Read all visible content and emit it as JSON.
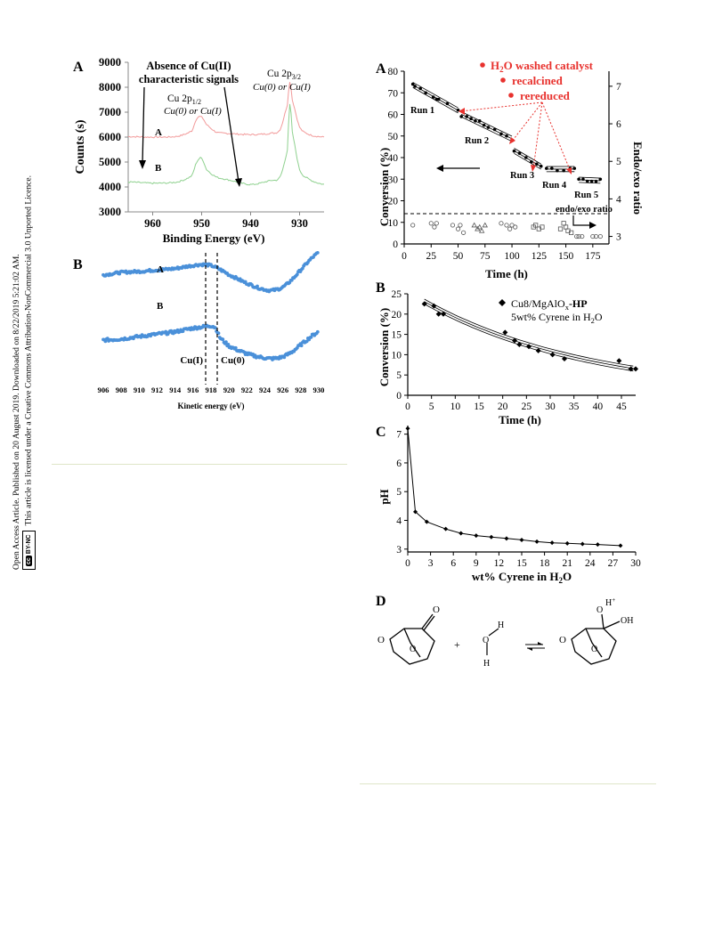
{
  "side_note": {
    "line1": "Open Access Article. Published on 20 August 2019. Downloaded on 8/22/2019 5:21:02 AM.",
    "line2": "This article is licensed under a Creative Commons Attribution-NonCommercial 3.0 Unported Licence.",
    "badge_cc": "cc",
    "badge_text": "BY-NC"
  },
  "left": {
    "A": {
      "letter": "A",
      "ylabel": "Counts (s)",
      "xlabel": "Binding Energy (eV)",
      "yticks": [
        "9000",
        "8000",
        "7000",
        "6000",
        "5000",
        "4000",
        "3000"
      ],
      "xticks": [
        "960",
        "950",
        "940",
        "930"
      ],
      "annot_absence_1": "Absence of Cu(II)",
      "annot_absence_2": "characteristic signals",
      "annot_2p12_a": "Cu 2p",
      "annot_2p12_sub": "1/2",
      "annot_2p12_b": "Cu(0) or Cu(I)",
      "annot_2p32_a": "Cu 2p",
      "annot_2p32_sub": "3/2",
      "annot_2p32_b": "Cu(0) or Cu(I)",
      "label_A": "A",
      "label_B": "B",
      "color_A": "#f29a9a",
      "color_B": "#8fd18f"
    },
    "B": {
      "letter": "B",
      "xlabel": "Kinetic energy (eV)",
      "xticks": [
        "906",
        "908",
        "910",
        "912",
        "914",
        "916",
        "918",
        "920",
        "922",
        "924",
        "926",
        "928",
        "930"
      ],
      "label_A": "A",
      "label_B": "B",
      "label_cu1": "Cu(I)",
      "label_cu0": "Cu(0)",
      "color": "#4a90d9"
    }
  },
  "right": {
    "A": {
      "letter": "A",
      "ylabel": "Conversion (%)",
      "y2label": "Endo/exo ratio",
      "xlabel": "Time (h)",
      "yticks": [
        "80",
        "70",
        "60",
        "50",
        "40",
        "30",
        "20",
        "10",
        "0"
      ],
      "y2ticks": [
        "7",
        "6",
        "5",
        "4",
        "3"
      ],
      "xticks": [
        "0",
        "25",
        "50",
        "75",
        "100",
        "125",
        "150",
        "175"
      ],
      "legend_1a": "H",
      "legend_1sub": "2",
      "legend_1b": "O washed catalyst",
      "legend_2": "recalcined",
      "legend_3": "rereduced",
      "run1": "Run 1",
      "run2": "Run 2",
      "run3": "Run 3",
      "run4": "Run 4",
      "run5": "Run 5",
      "endo_exo_label": "endo/exo ratio",
      "red": "#e8322e"
    },
    "B": {
      "letter": "B",
      "ylabel": "Conversion (%)",
      "xlabel": "Time (h)",
      "yticks": [
        "25",
        "20",
        "15",
        "10",
        "5",
        "0"
      ],
      "xticks": [
        "0",
        "5",
        "10",
        "15",
        "20",
        "25",
        "30",
        "35",
        "40",
        "45"
      ],
      "legend_1a": "Cu8/MgAlO",
      "legend_1sub": "x",
      "legend_1b": "-HP",
      "legend_2a": "5wt% Cyrene in H",
      "legend_2sub": "2",
      "legend_2b": "O"
    },
    "C": {
      "letter": "C",
      "ylabel": "pH",
      "xlabel_a": "wt% Cyrene in H",
      "xlabel_sub": "2",
      "xlabel_b": "O",
      "yticks": [
        "7",
        "6",
        "5",
        "4",
        "3"
      ],
      "xticks": [
        "0",
        "3",
        "6",
        "9",
        "12",
        "15",
        "18",
        "21",
        "24",
        "27",
        "30"
      ]
    },
    "D": {
      "letter": "D",
      "atom_O_ring": "O",
      "atom_O_keto": "O",
      "atom_O_bridge": "O",
      "plus": "+",
      "water_O": "O",
      "water_H1": "H",
      "water_H2": "H",
      "prod_O_ring": "O",
      "prod_O_bridge": "O",
      "prod_Ominus": "O",
      "prod_H": "H",
      "prod_plus": "+",
      "prod_OH": "OH"
    }
  },
  "chart_data": [
    {
      "type": "line",
      "panel": "left A (XPS)",
      "xlabel": "Binding Energy (eV)",
      "ylabel": "Counts (s)",
      "xlim": [
        965,
        925
      ],
      "ylim": [
        3000,
        9000
      ],
      "series": [
        {
          "name": "A",
          "x": [
            965,
            960,
            955,
            952,
            951,
            950,
            949,
            947,
            945,
            940,
            936,
            934,
            932.5,
            932,
            931.5,
            930,
            928,
            925
          ],
          "values": [
            6020,
            6000,
            6030,
            6250,
            6750,
            6800,
            6500,
            6200,
            6150,
            6100,
            6150,
            6300,
            7300,
            8200,
            7500,
            6400,
            6100,
            6000
          ]
        },
        {
          "name": "B",
          "x": [
            965,
            960,
            955,
            952,
            951,
            950,
            949,
            947,
            945,
            940,
            936,
            934,
            932.5,
            932,
            931.5,
            930,
            928,
            925
          ],
          "values": [
            4200,
            4150,
            4200,
            4450,
            5000,
            5150,
            4700,
            4400,
            4300,
            4100,
            4250,
            4400,
            5500,
            7300,
            6200,
            4700,
            4300,
            4100
          ]
        }
      ]
    },
    {
      "type": "line",
      "panel": "left B (Auger)",
      "xlabel": "Kinetic energy (eV)",
      "xlim": [
        906,
        930
      ],
      "series": [
        {
          "name": "A",
          "x": [
            906,
            908,
            910,
            912,
            914,
            916,
            917,
            918,
            919,
            920,
            922,
            924,
            925,
            926,
            927,
            928,
            929,
            930
          ],
          "values": [
            0.55,
            0.6,
            0.62,
            0.65,
            0.68,
            0.74,
            0.76,
            0.74,
            0.66,
            0.55,
            0.38,
            0.25,
            0.24,
            0.3,
            0.45,
            0.65,
            0.85,
            1.0
          ]
        },
        {
          "name": "B",
          "x": [
            906,
            908,
            910,
            912,
            914,
            916,
            917,
            918,
            918.5,
            919,
            920,
            922,
            924,
            925,
            926,
            927,
            928,
            929,
            930
          ],
          "values": [
            0.18,
            0.2,
            0.24,
            0.28,
            0.32,
            0.38,
            0.4,
            0.42,
            0.38,
            0.22,
            0.08,
            -0.05,
            -0.12,
            -0.13,
            -0.1,
            -0.02,
            0.1,
            0.22,
            0.32
          ]
        }
      ]
    },
    {
      "type": "scatter",
      "panel": "right A",
      "xlabel": "Time (h)",
      "ylabel": "Conversion (%)",
      "y2label": "Endo/exo ratio",
      "xlim": [
        0,
        190
      ],
      "ylim": [
        0,
        80
      ],
      "y2lim": [
        2.8,
        7.4
      ],
      "series": [
        {
          "name": "Run 1",
          "x": [
            8,
            10,
            15,
            20,
            27,
            30,
            32,
            40,
            50
          ],
          "values": [
            74,
            73,
            72,
            70,
            68,
            67,
            67,
            65,
            62
          ]
        },
        {
          "name": "Run 2",
          "x": [
            53,
            58,
            62,
            66,
            70,
            74,
            78,
            84,
            90,
            95,
            100
          ],
          "values": [
            59,
            59,
            58,
            57,
            57,
            55,
            54,
            53,
            51,
            50,
            48
          ]
        },
        {
          "name": "Run 3",
          "x": [
            102,
            107,
            113,
            118,
            123,
            127
          ],
          "values": [
            43,
            42,
            40,
            38,
            37,
            36
          ]
        },
        {
          "name": "Run 4",
          "x": [
            132,
            137,
            142,
            148,
            154,
            158
          ],
          "values": [
            35,
            35,
            34,
            34,
            35,
            35
          ]
        },
        {
          "name": "Run 5",
          "x": [
            162,
            166,
            170,
            174,
            178,
            182
          ],
          "values": [
            30,
            30,
            29,
            29,
            29,
            30
          ]
        },
        {
          "name": "endo/exo ratio",
          "x": [
            8,
            25,
            28,
            30,
            45,
            50,
            52,
            55,
            65,
            68,
            70,
            72,
            75,
            90,
            95,
            98,
            100,
            103,
            120,
            122,
            125,
            128,
            145,
            148,
            150,
            152,
            155,
            160,
            162,
            165,
            175,
            178,
            182
          ],
          "values": [
            3.3,
            3.35,
            3.25,
            3.35,
            3.3,
            3.2,
            3.3,
            3.1,
            3.3,
            3.2,
            3.25,
            3.15,
            3.3,
            3.35,
            3.3,
            3.2,
            3.3,
            3.25,
            3.25,
            3.3,
            3.2,
            3.25,
            3.2,
            3.35,
            3.25,
            3.15,
            3.1,
            3.0,
            3.0,
            3.0,
            3.0,
            3.0,
            3.0
          ]
        }
      ]
    },
    {
      "type": "scatter",
      "panel": "right B",
      "xlabel": "Time (h)",
      "ylabel": "Conversion (%)",
      "xlim": [
        0,
        48
      ],
      "ylim": [
        0,
        25
      ],
      "series": [
        {
          "name": "Cu8/MgAlOx-HP",
          "x": [
            3.5,
            5.5,
            6.5,
            7.5,
            20.5,
            22.5,
            23.5,
            25.5,
            27.5,
            30.5,
            33,
            44.5,
            47,
            48
          ],
          "values": [
            22.5,
            22,
            20,
            20,
            15.5,
            13.5,
            12.5,
            12,
            11,
            10,
            9,
            8.5,
            6.5,
            6.5
          ]
        }
      ]
    },
    {
      "type": "line",
      "panel": "right C",
      "xlabel": "wt% Cyrene in H2O",
      "ylabel": "pH",
      "xlim": [
        0,
        30
      ],
      "ylim": [
        2.9,
        7.3
      ],
      "series": [
        {
          "name": "pH",
          "x": [
            0,
            1,
            2.5,
            5,
            7,
            9,
            11,
            13,
            15,
            17,
            19,
            21,
            23,
            25,
            28
          ],
          "values": [
            7.2,
            4.3,
            3.95,
            3.7,
            3.55,
            3.47,
            3.42,
            3.37,
            3.32,
            3.26,
            3.22,
            3.2,
            3.18,
            3.16,
            3.12
          ]
        }
      ]
    }
  ]
}
